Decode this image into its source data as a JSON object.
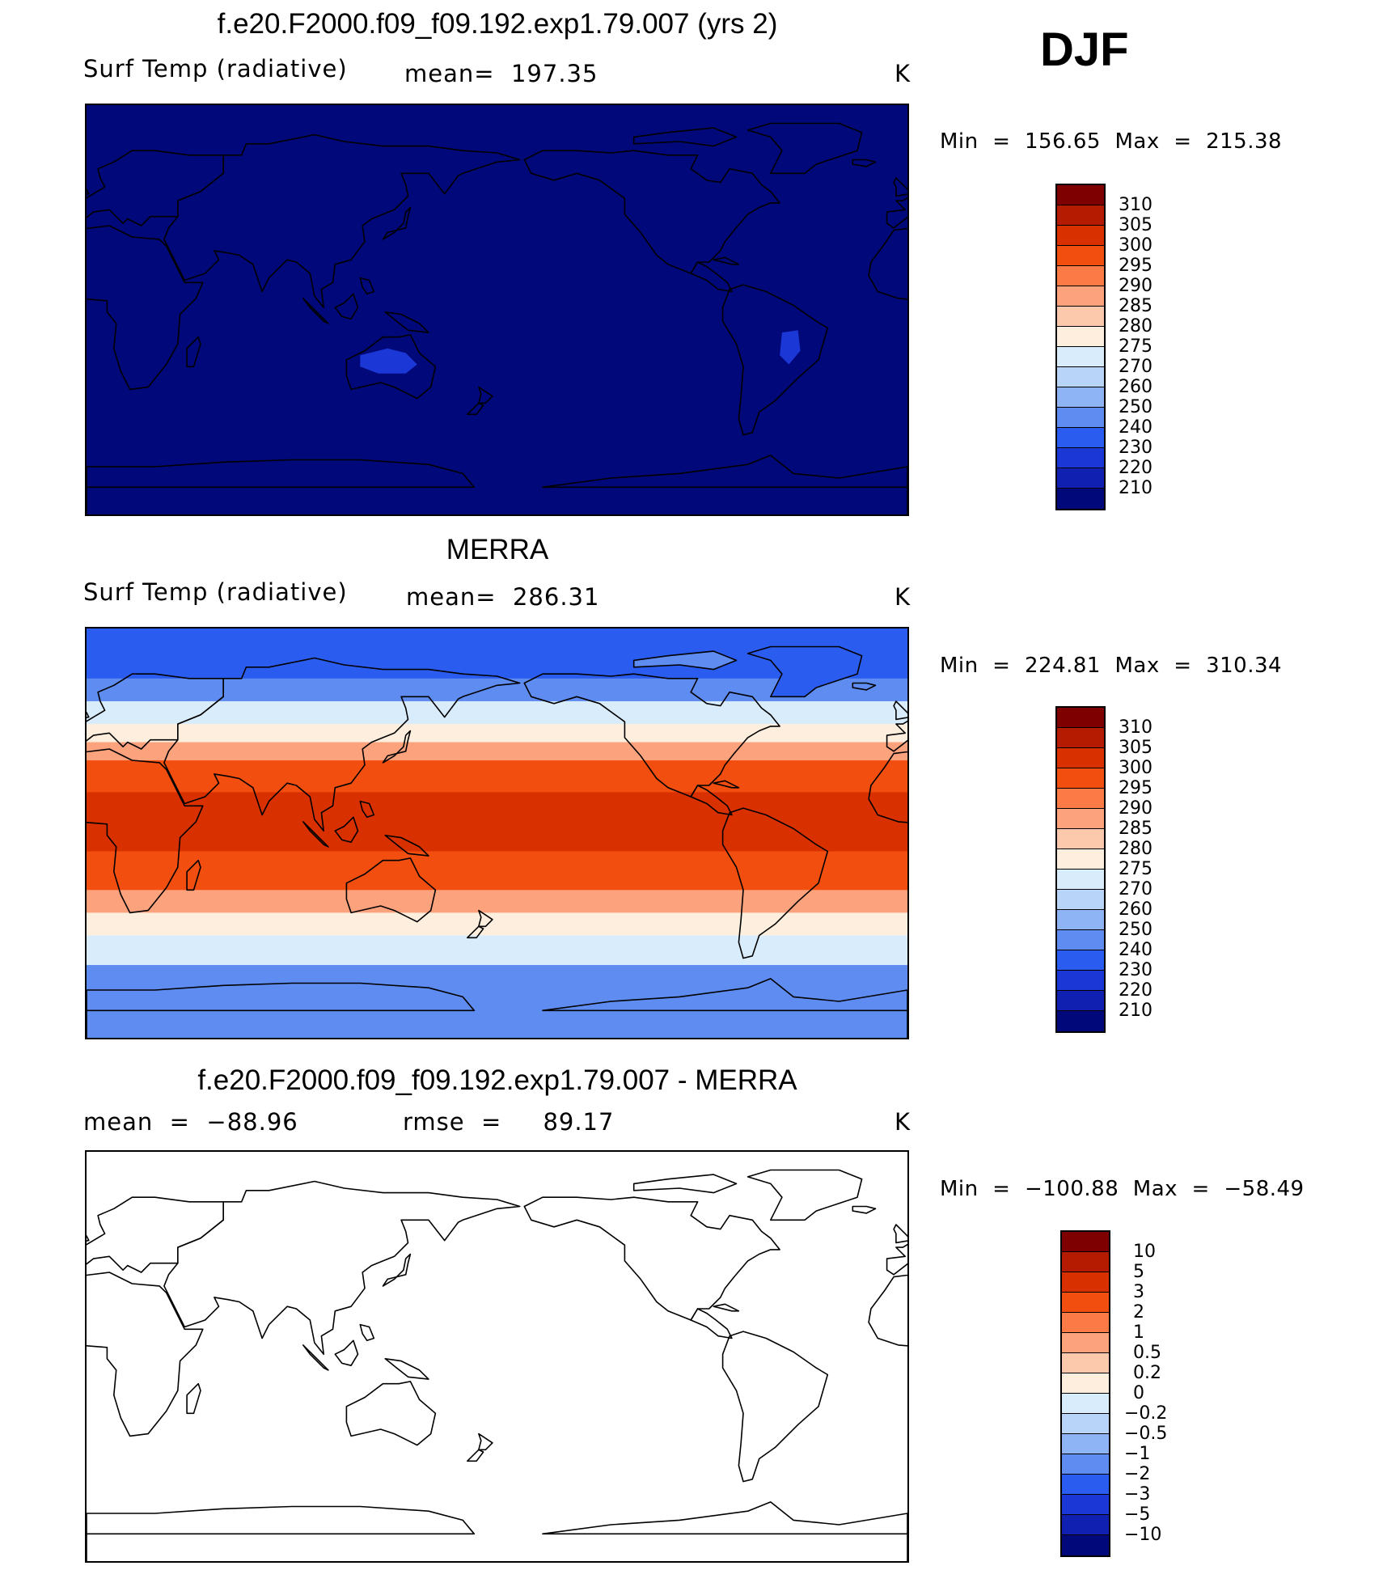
{
  "season": "DJF",
  "panels": [
    {
      "title": "f.e20.F2000.f09_f09.192.exp1.79.007 (yrs 2)",
      "left_label": "Surf Temp (radiative)",
      "center_label": "mean=  197.35",
      "units": "K",
      "minmax": "Min  =  156.65  Max  =  215.38"
    },
    {
      "title": "MERRA",
      "left_label": "Surf Temp (radiative)",
      "center_label": "mean=  286.31",
      "units": "K",
      "minmax": "Min  =  224.81  Max  =  310.34"
    },
    {
      "title": "f.e20.F2000.f09_f09.192.exp1.79.007 - MERRA",
      "left_label": "mean  =  −88.96",
      "center_label": "rmse  =     89.17",
      "units": "K",
      "minmax": "Min  =  −100.88  Max  =  −58.49"
    }
  ],
  "colorbar_abs": {
    "labels": [
      "310",
      "305",
      "300",
      "295",
      "290",
      "285",
      "280",
      "275",
      "270",
      "260",
      "250",
      "240",
      "230",
      "220",
      "210"
    ],
    "colors": [
      "#7f0000",
      "#b51b00",
      "#d93000",
      "#f24e10",
      "#fb7a45",
      "#fca27c",
      "#fdc9ac",
      "#feeedd",
      "#d9ecfb",
      "#b8d4f9",
      "#8fb4f6",
      "#5e8cf1",
      "#2a5cf0",
      "#1b37d6",
      "#1020b0",
      "#00087a"
    ]
  },
  "colorbar_diff": {
    "labels": [
      "10",
      "5",
      "3",
      "2",
      "1",
      "0.5",
      "0.2",
      "0",
      "−0.2",
      "−0.5",
      "−1",
      "−2",
      "−3",
      "−5",
      "−10"
    ],
    "colors": [
      "#7f0000",
      "#b51b00",
      "#d93000",
      "#f24e10",
      "#fb7a45",
      "#fca27c",
      "#fdc9ac",
      "#feeedd",
      "#d9ecfb",
      "#b8d4f9",
      "#8fb4f6",
      "#5e8cf1",
      "#2a5cf0",
      "#1b37d6",
      "#1020b0",
      "#00087a"
    ]
  },
  "map_colors": {
    "model_ocean": "#00087a",
    "model_warm_land": "#1b37d6",
    "merra_bands": [
      "#2a5cf0",
      "#5e8cf1",
      "#d9ecfb",
      "#feeedd",
      "#fca27c",
      "#f24e10",
      "#d93000",
      "#f24e10",
      "#fca27c",
      "#feeedd",
      "#d9ecfb",
      "#5e8cf1"
    ],
    "diff_fill": "#ffffff",
    "coastline": "#000000"
  }
}
